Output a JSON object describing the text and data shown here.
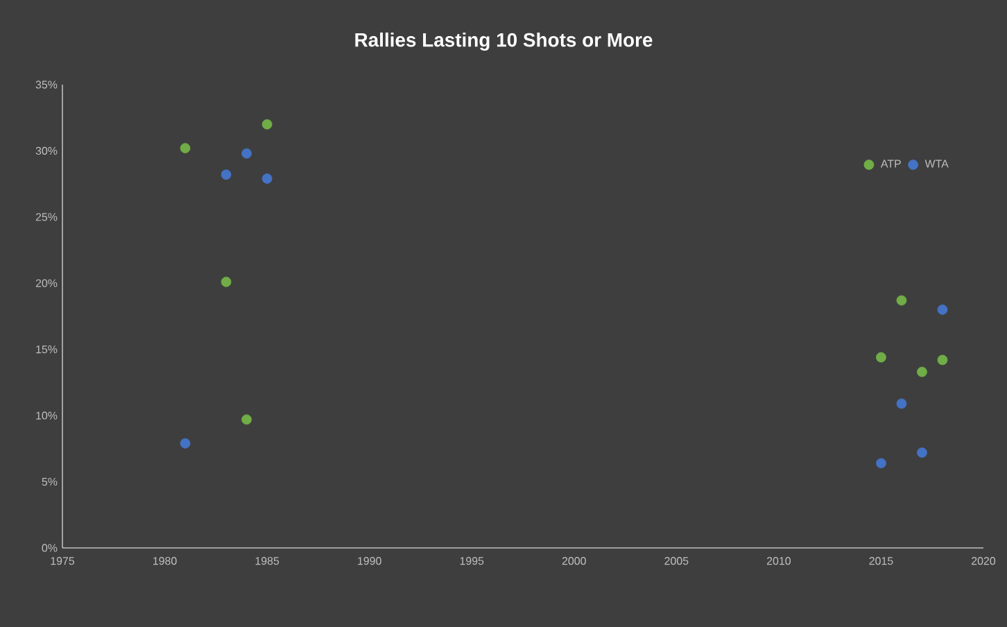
{
  "chart_data": {
    "type": "scatter",
    "title": "Rallies Lasting 10 Shots or More",
    "series": [
      {
        "name": "ATP",
        "color": "#70ad47",
        "x": [
          1981,
          1983,
          1984,
          1985,
          2015,
          2016,
          2017,
          2018
        ],
        "values": [
          30.2,
          20.1,
          9.7,
          32.0,
          14.4,
          18.7,
          13.3,
          14.2
        ]
      },
      {
        "name": "WTA",
        "color": "#4472c4",
        "x": [
          1981,
          1983,
          1984,
          1985,
          2015,
          2016,
          2017,
          2018
        ],
        "values": [
          7.9,
          28.2,
          29.8,
          27.9,
          6.4,
          10.9,
          7.2,
          18.0
        ]
      }
    ],
    "xlim": [
      1975,
      2020
    ],
    "xticks": [
      1975,
      1980,
      1985,
      1990,
      1995,
      2000,
      2005,
      2010,
      2015,
      2020
    ],
    "ylim": [
      0,
      35
    ],
    "yticks": [
      {
        "value": 0,
        "label": "0%"
      },
      {
        "value": 5,
        "label": "5%"
      },
      {
        "value": 10,
        "label": "10%"
      },
      {
        "value": 15,
        "label": "15%"
      },
      {
        "value": 20,
        "label": "20%"
      },
      {
        "value": 25,
        "label": "25%"
      },
      {
        "value": 30,
        "label": "30%"
      },
      {
        "value": 35,
        "label": "35%"
      }
    ],
    "grid": false,
    "legend": "top right"
  }
}
